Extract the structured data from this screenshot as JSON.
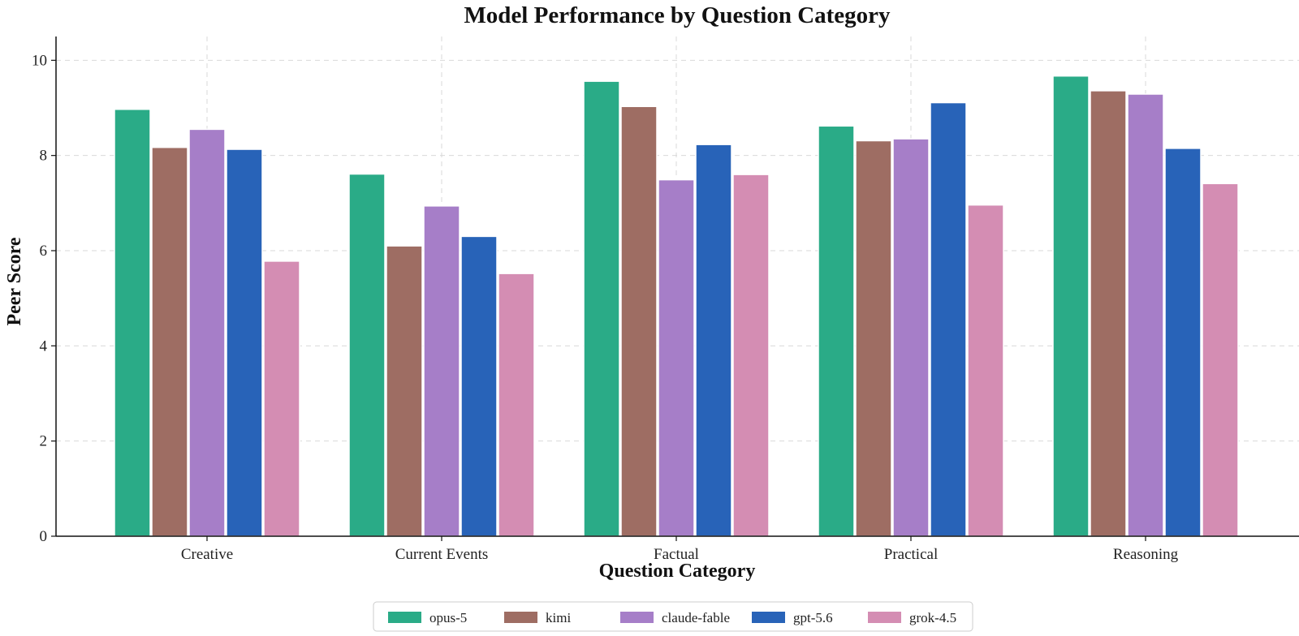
{
  "chart_data": {
    "type": "bar",
    "title": "Model Performance by Question Category",
    "xlabel": "Question Category",
    "ylabel": "Peer Score",
    "categories": [
      "Creative",
      "Current Events",
      "Factual",
      "Practical",
      "Reasoning"
    ],
    "ylim": [
      0,
      10.5
    ],
    "yticks": [
      0,
      2,
      4,
      6,
      8,
      10
    ],
    "grid": true,
    "legend_position": "bottom-center",
    "series": [
      {
        "name": "opus-5",
        "color": "#2aab87",
        "values": [
          8.97,
          7.61,
          9.56,
          8.62,
          9.67
        ]
      },
      {
        "name": "kimi",
        "color": "#9e6d63",
        "values": [
          8.17,
          6.1,
          9.03,
          8.31,
          9.36
        ]
      },
      {
        "name": "claude-fable",
        "color": "#a67ec8",
        "values": [
          8.55,
          6.94,
          7.49,
          8.35,
          9.29
        ]
      },
      {
        "name": "gpt-5.6",
        "color": "#2863b8",
        "values": [
          8.13,
          6.3,
          8.23,
          9.11,
          8.15
        ]
      },
      {
        "name": "grok-4.5",
        "color": "#d48db3",
        "values": [
          5.78,
          5.52,
          7.6,
          6.96,
          7.41
        ]
      }
    ]
  }
}
